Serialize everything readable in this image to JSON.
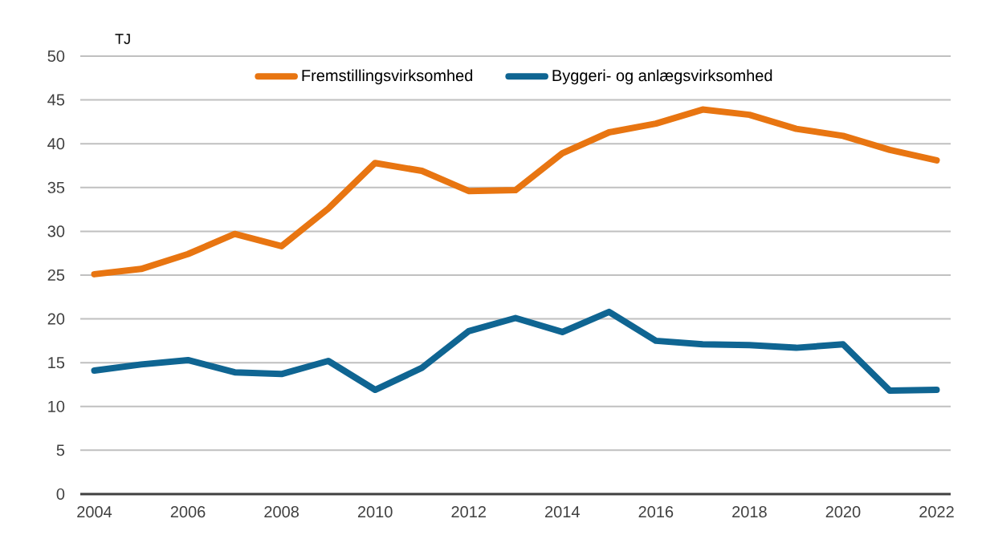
{
  "chart_data": {
    "type": "line",
    "ylabel": "TJ",
    "categories": [
      "2004",
      null,
      "2006",
      null,
      "2008",
      null,
      "2010",
      null,
      "2012",
      null,
      "2014",
      null,
      "2016",
      null,
      "2018",
      null,
      "2020",
      null,
      "2022"
    ],
    "series": [
      {
        "name": "Fremstillingsvirksomhed",
        "color": "#e87511",
        "values": [
          25.1,
          25.7,
          27.4,
          29.7,
          28.3,
          32.6,
          37.8,
          36.9,
          34.6,
          34.7,
          38.9,
          41.3,
          42.3,
          43.9,
          43.3,
          41.7,
          40.9,
          39.3,
          38.1
        ]
      },
      {
        "name": "Byggeri- og anlægsvirksomhed",
        "color": "#0f6592",
        "values": [
          14.1,
          14.8,
          15.3,
          13.9,
          13.7,
          15.2,
          11.9,
          14.4,
          18.6,
          20.1,
          18.5,
          20.8,
          17.5,
          17.1,
          17.0,
          16.7,
          17.1,
          11.8,
          11.9
        ]
      }
    ],
    "ylim": [
      0,
      50
    ],
    "yticks": [
      0,
      5,
      10,
      15,
      20,
      25,
      30,
      35,
      40,
      45,
      50
    ],
    "grid": "y",
    "legend": "top",
    "marker": "none",
    "line_style": "solid"
  }
}
